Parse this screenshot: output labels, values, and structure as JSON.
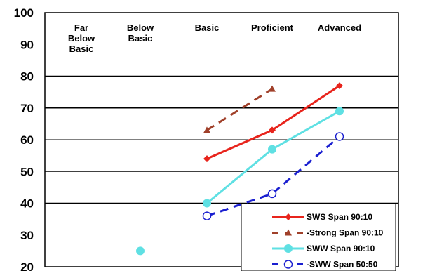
{
  "chart_data": {
    "type": "line",
    "title": "",
    "xlabel": "",
    "ylabel": "",
    "ylim": [
      20,
      100
    ],
    "yticks": [
      "20",
      "30",
      "40",
      "50",
      "60",
      "70",
      "80",
      "90",
      "100"
    ],
    "grid": true,
    "legend_position": "bottom-right",
    "categories": [
      [
        "Far",
        "Below",
        "Basic"
      ],
      [
        "Below",
        "Basic"
      ],
      [
        "Basic"
      ],
      [
        "Proficient"
      ],
      [
        "Advanced"
      ]
    ],
    "x": [
      "Basic",
      "Proficient",
      "Advanced"
    ],
    "series": [
      {
        "name": "SWS Span 90:10",
        "values": [
          54,
          63,
          77
        ],
        "color": "#e8241c",
        "dash": "solid",
        "marker": "diamond"
      },
      {
        "name": "-Strong Span 90:10",
        "values": [
          63,
          76,
          null
        ],
        "color": "#a0402a",
        "dash": "dashed",
        "marker": "triangle"
      },
      {
        "name": "SWW Span 90:10",
        "values": [
          40,
          57,
          69
        ],
        "color": "#5fe0e3",
        "dash": "solid",
        "marker": "circle"
      },
      {
        "name": "-SWW Span 50:50",
        "values": [
          36,
          43,
          61
        ],
        "color": "#1a1fd0",
        "dash": "dashed",
        "marker": "open-circle"
      }
    ],
    "extra_points": [
      {
        "x": "Below Basic",
        "y": 25,
        "color": "#5fe0e3",
        "marker": "circle"
      }
    ]
  }
}
